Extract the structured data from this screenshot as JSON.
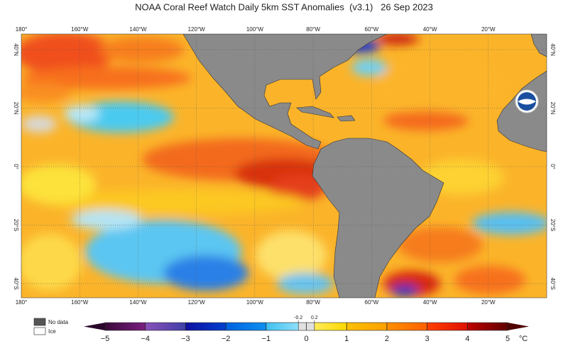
{
  "title": "NOAA Coral Reef Watch Daily 5km SST Anomalies  (v3.1)   26 Sep 2023",
  "map": {
    "lon_ticks": [
      {
        "value": -180,
        "label": "180°"
      },
      {
        "value": -160,
        "label": "160°W"
      },
      {
        "value": -140,
        "label": "140°W"
      },
      {
        "value": -120,
        "label": "120°W"
      },
      {
        "value": -100,
        "label": "100°W"
      },
      {
        "value": -80,
        "label": "80°W"
      },
      {
        "value": -60,
        "label": "60°W"
      },
      {
        "value": -40,
        "label": "40°W"
      },
      {
        "value": -20,
        "label": "20°W"
      }
    ],
    "lat_ticks": [
      {
        "value": 40,
        "label": "40°N"
      },
      {
        "value": 20,
        "label": "20°N"
      },
      {
        "value": 0,
        "label": "0°"
      },
      {
        "value": -20,
        "label": "20°S"
      },
      {
        "value": -40,
        "label": "40°S"
      }
    ]
  },
  "legend": {
    "no_data": "No data",
    "ice": "Ice"
  },
  "colorbar": {
    "ticks": [
      {
        "value": -5,
        "label": "−5"
      },
      {
        "value": -4,
        "label": "−4"
      },
      {
        "value": -3,
        "label": "−3"
      },
      {
        "value": -2,
        "label": "−2"
      },
      {
        "value": -1,
        "label": "−1"
      },
      0,
      1,
      2,
      3,
      4,
      5
    ],
    "thresholds": [
      -0.2,
      0.2
    ],
    "unit": "°C"
  }
}
